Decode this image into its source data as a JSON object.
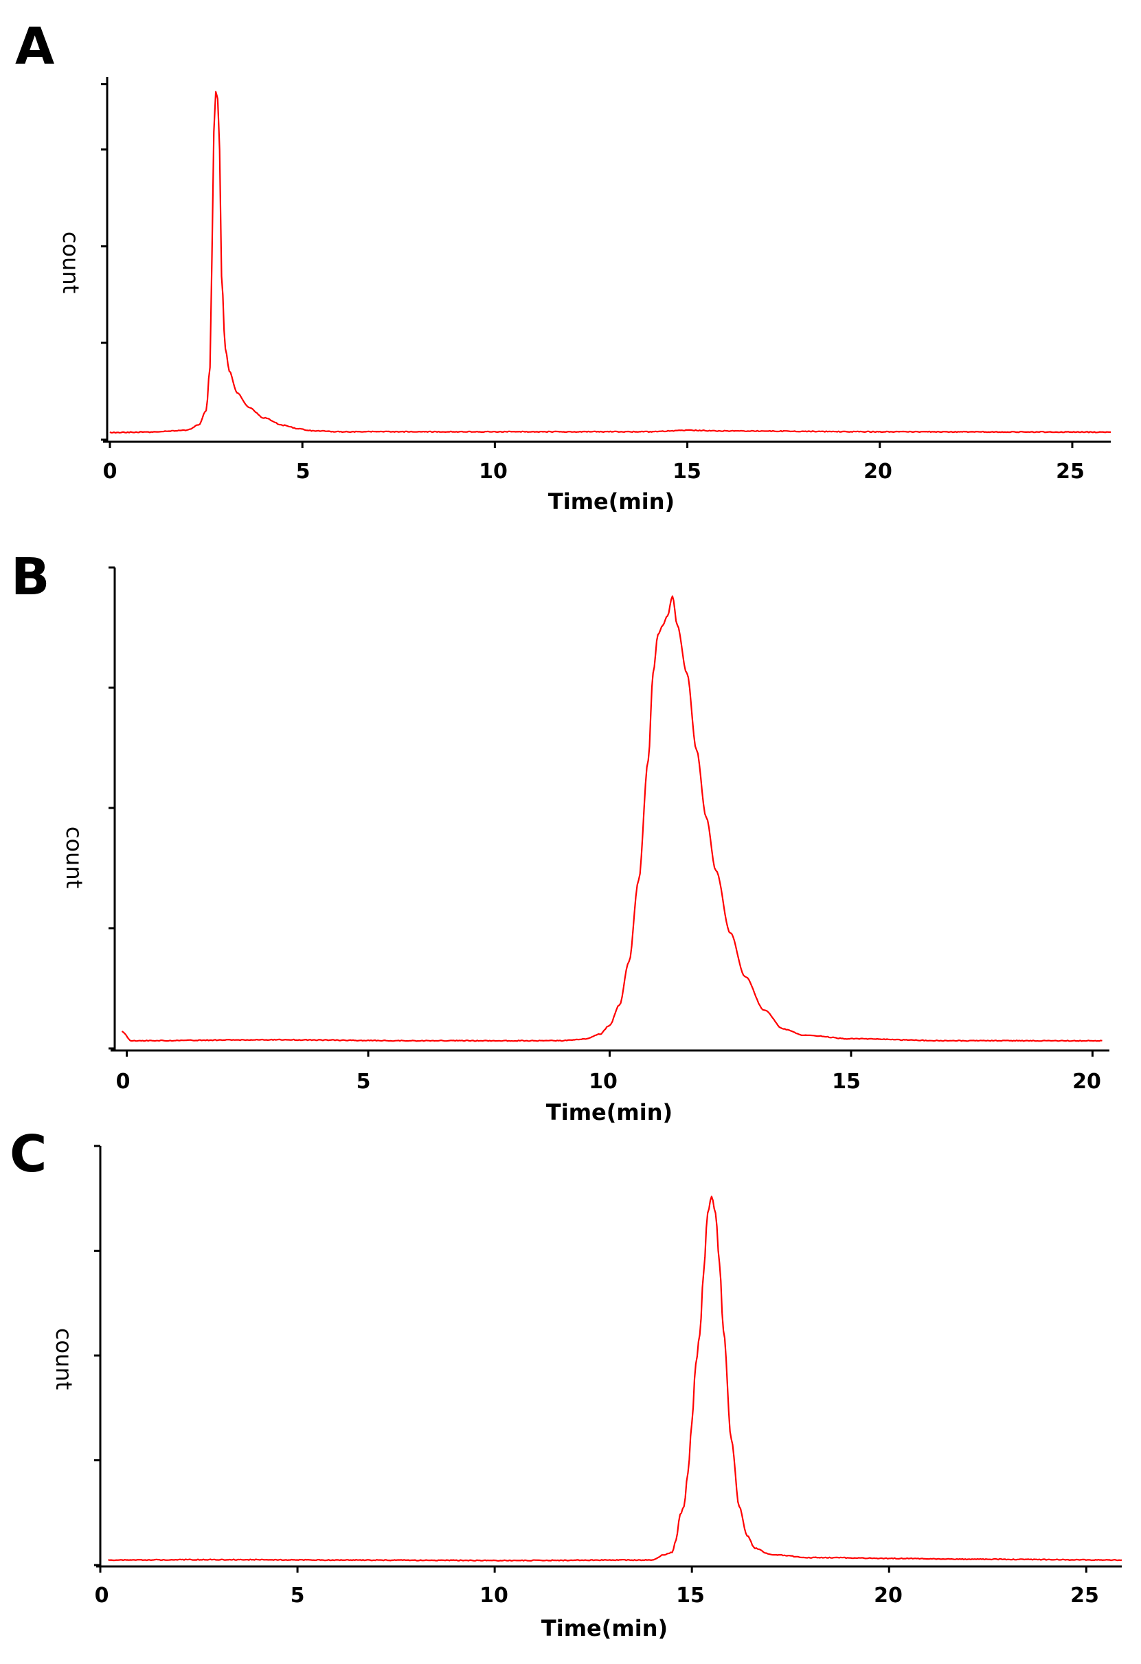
{
  "figure": {
    "trace_color": "#ff0000",
    "axis_color": "#000000"
  },
  "chart_data": [
    {
      "type": "line",
      "panel": "A",
      "xlabel": "Time(min)",
      "ylabel": "count",
      "xlim": [
        0,
        26
      ],
      "ylim": [
        0,
        100
      ],
      "xticks": [
        0,
        5,
        10,
        15,
        20,
        25
      ],
      "x_tick_labels": [
        "0",
        "5",
        "10",
        "15",
        "20",
        "25"
      ],
      "yticks": [
        0,
        26.7,
        53.3,
        80,
        98
      ],
      "series": [
        {
          "name": "A",
          "x": [
            0,
            1,
            2,
            2.3,
            2.5,
            2.6,
            2.65,
            2.7,
            2.75,
            2.8,
            2.85,
            2.9,
            3.0,
            3.1,
            3.3,
            3.6,
            4.0,
            4.5,
            4.9,
            5.2,
            6,
            10,
            14,
            15,
            16,
            20,
            26
          ],
          "y": [
            2.0,
            2.1,
            2.6,
            4.0,
            8.0,
            20.0,
            50.0,
            85.0,
            96.0,
            94.0,
            80.0,
            45.0,
            25.0,
            19.0,
            13.0,
            9.0,
            6.0,
            4.0,
            3.0,
            2.5,
            2.2,
            2.2,
            2.2,
            2.6,
            2.4,
            2.2,
            2.1
          ]
        }
      ]
    },
    {
      "type": "line",
      "panel": "B",
      "xlabel": "Time(min)",
      "ylabel": "count",
      "xlim": [
        -0.25,
        20.35
      ],
      "ylim": [
        0,
        100
      ],
      "xticks": [
        0,
        5,
        10,
        15,
        20
      ],
      "x_tick_labels": [
        "0",
        "5",
        "10",
        "15",
        "20"
      ],
      "yticks": [
        0,
        25,
        50,
        75,
        100
      ],
      "series": [
        {
          "name": "B",
          "x": [
            -0.1,
            0.1,
            3,
            6,
            9,
            9.5,
            9.8,
            10.0,
            10.2,
            10.4,
            10.6,
            10.8,
            10.9,
            11.0,
            11.1,
            11.2,
            11.3,
            11.4,
            11.6,
            11.8,
            12.0,
            12.2,
            12.5,
            12.8,
            13.2,
            13.6,
            14,
            15,
            17,
            20.2
          ],
          "y": [
            3.5,
            1.6,
            1.8,
            1.6,
            1.6,
            2.0,
            3.0,
            4.8,
            9.0,
            18.0,
            35.0,
            60.0,
            78.0,
            86.0,
            88.0,
            90.0,
            94.0,
            88.0,
            78.0,
            62.0,
            48.0,
            37.0,
            24.0,
            15.0,
            8.0,
            4.0,
            2.8,
            2.0,
            1.6,
            1.6
          ]
        }
      ]
    },
    {
      "type": "line",
      "panel": "C",
      "xlabel": "Time(min)",
      "ylabel": "count",
      "xlim": [
        0,
        25.9
      ],
      "ylim": [
        0,
        100
      ],
      "xticks": [
        0,
        5,
        10,
        15,
        20,
        25
      ],
      "x_tick_labels": [
        "0",
        "5",
        "10",
        "15",
        "20",
        "25"
      ],
      "yticks": [
        0,
        25,
        50,
        75,
        100
      ],
      "series": [
        {
          "name": "C",
          "x": [
            0.2,
            3,
            6,
            10,
            14,
            14.3,
            14.5,
            14.6,
            14.7,
            14.8,
            14.9,
            15.0,
            15.1,
            15.2,
            15.3,
            15.4,
            15.5,
            15.6,
            15.7,
            15.8,
            16.0,
            16.2,
            16.4,
            16.6,
            17.0,
            18,
            20,
            22,
            25.9
          ],
          "y": [
            1.2,
            1.3,
            1.2,
            1.1,
            1.2,
            2.5,
            3.0,
            6.0,
            12.0,
            14.0,
            22.0,
            34.0,
            48.0,
            55.0,
            70.0,
            84.0,
            88.0,
            84.0,
            72.0,
            56.0,
            30.0,
            14.0,
            7.0,
            4.0,
            2.5,
            1.8,
            1.6,
            1.4,
            1.2
          ]
        }
      ]
    }
  ]
}
